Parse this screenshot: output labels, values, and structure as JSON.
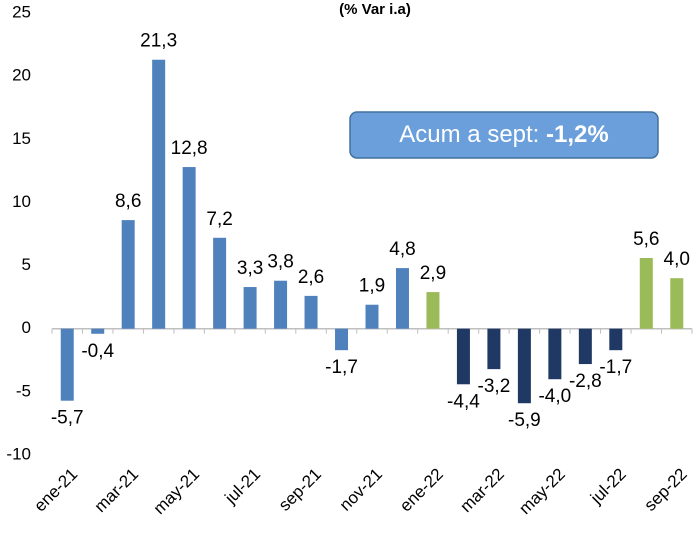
{
  "chart_data": {
    "type": "bar",
    "title": "(% Var i.a)",
    "categories": [
      "ene-21",
      null,
      "mar-21",
      null,
      "may-21",
      null,
      "jul-21",
      null,
      "sep-21",
      null,
      "nov-21",
      null,
      "ene-22",
      null,
      "mar-22",
      null,
      "may-22",
      null,
      "jul-22",
      null,
      "sep-22"
    ],
    "values": [
      -5.7,
      -0.4,
      8.6,
      21.3,
      12.8,
      7.2,
      3.3,
      3.8,
      2.6,
      -1.7,
      1.9,
      4.8,
      2.9,
      -4.4,
      -3.2,
      -5.9,
      -4.0,
      -2.8,
      -1.7,
      5.6,
      4.0
    ],
    "value_labels": [
      "-5,7",
      "-0,4",
      "8,6",
      "21,3",
      "12,8",
      "7,2",
      "3,3",
      "3,8",
      "2,6",
      "-1,7",
      "1,9",
      "4,8",
      "2,9",
      "-4,4",
      "-3,2",
      "-5,9",
      "-4,0",
      "-2,8",
      "-1,7",
      "5,6",
      "4,0"
    ],
    "colors": [
      "#4f81bd",
      "#4f81bd",
      "#4f81bd",
      "#4f81bd",
      "#4f81bd",
      "#4f81bd",
      "#4f81bd",
      "#4f81bd",
      "#4f81bd",
      "#4f81bd",
      "#4f81bd",
      "#4f81bd",
      "#9bbb59",
      "#1f3864",
      "#1f3864",
      "#1f3864",
      "#1f3864",
      "#1f3864",
      "#1f3864",
      "#9bbb59",
      "#9bbb59"
    ],
    "ylim": [
      -10,
      25
    ],
    "yticks": [
      -10,
      -5,
      0,
      5,
      10,
      15,
      20,
      25
    ],
    "annotation": {
      "text": "Acum a sept:",
      "bold": "-1,2%"
    }
  }
}
